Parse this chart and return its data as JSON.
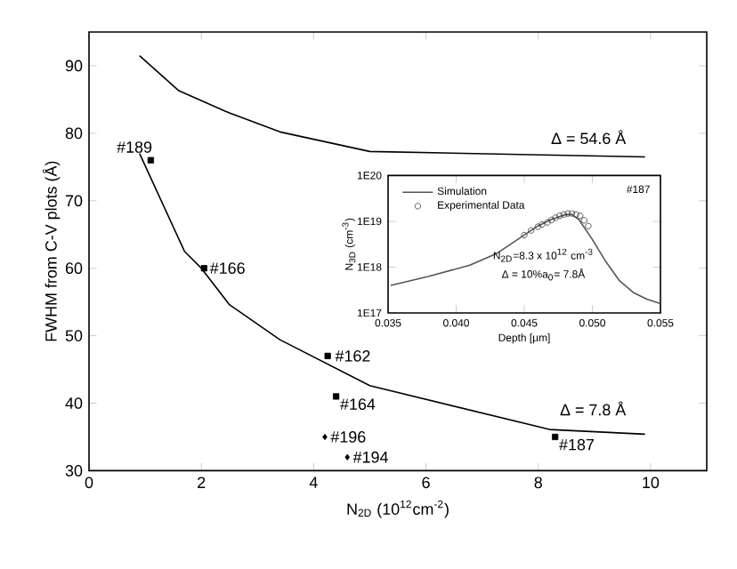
{
  "chart_data": [
    {
      "type": "scatter",
      "xlabel": "N$_{2D}$ (10$^{12}$cm$^{-2}$)",
      "ylabel": "FWHM from C-V plots (Å)",
      "xlim": [
        0,
        11
      ],
      "ylim": [
        30,
        95
      ],
      "xticks": [
        0,
        2,
        4,
        6,
        8,
        10
      ],
      "yticks": [
        30,
        40,
        50,
        60,
        70,
        80,
        90
      ],
      "grid": false,
      "legend": false,
      "series": [
        {
          "type": "line",
          "color": "#000000",
          "marker": "none",
          "x": [
            0.9,
            1.6,
            2.5,
            3.4,
            5.0,
            9.9
          ],
          "values": [
            91.5,
            86.3,
            83,
            80.2,
            77.3,
            76.5
          ]
        },
        {
          "type": "line",
          "color": "#000000",
          "marker": "none",
          "x": [
            0.9,
            1.7,
            2.0,
            2.5,
            3.4,
            5.0,
            8.2,
            9.9
          ],
          "values": [
            77,
            62.5,
            60,
            54.6,
            49.4,
            42.6,
            36.1,
            35.4
          ]
        },
        {
          "color": "#000000",
          "marker": "square",
          "x": [
            1.1,
            2.05,
            4.25,
            4.4,
            8.3
          ],
          "values": [
            76,
            60,
            47,
            41,
            35
          ]
        },
        {
          "color": "#000000",
          "marker": "diamond",
          "x": [
            4.2,
            4.6
          ],
          "values": [
            35,
            32
          ]
        }
      ],
      "annotations": [
        {
          "text": "#189",
          "x": 1.1,
          "y": 76
        },
        {
          "text": "#166",
          "x": 2.05,
          "y": 60
        },
        {
          "text": "#162",
          "x": 4.25,
          "y": 47
        },
        {
          "text": "#164",
          "x": 4.4,
          "y": 41
        },
        {
          "text": "#196",
          "x": 4.2,
          "y": 35
        },
        {
          "text": "#194",
          "x": 4.6,
          "y": 32
        },
        {
          "text": "#187",
          "x": 8.3,
          "y": 35
        },
        {
          "text": "Δ = 54.6 Å",
          "x": 9.6,
          "y": 76.5
        },
        {
          "text": "Δ = 7.8 Å",
          "x": 9.6,
          "y": 35.5
        }
      ]
    },
    {
      "type": "line",
      "xlabel": "Depth [µm]",
      "ylabel": "N$_{3D}$ (cm$^{-3}$)",
      "log": "y",
      "xlim": [
        0.035,
        0.055
      ],
      "ylim": [
        1e+17,
        1e+20
      ],
      "xticks": [
        {
          "value": 0.035,
          "label": "0.035"
        },
        {
          "value": 0.04,
          "label": "0.040"
        },
        {
          "value": 0.045,
          "label": "0.045"
        },
        {
          "value": 0.05,
          "label": "0.050"
        },
        {
          "value": 0.055,
          "label": "0.055"
        }
      ],
      "yticks": [
        {
          "value": 1e+17,
          "label": "1E17"
        },
        {
          "value": 1e+18,
          "label": "1E18"
        },
        {
          "value": 1e+19,
          "label": "1E19"
        },
        {
          "value": 1e+20,
          "label": "1E20"
        }
      ],
      "grid": false,
      "legend": "top left",
      "series": [
        {
          "name": "Simulation",
          "color": "#555555",
          "marker": "none",
          "x": [
            0.0352,
            0.038,
            0.041,
            0.043,
            0.045,
            0.046,
            0.047,
            0.048,
            0.0485,
            0.049,
            0.05,
            0.051,
            0.052,
            0.053,
            0.054,
            0.055
          ],
          "values": [
            4e+17,
            6.3e+17,
            1.1e+18,
            2e+18,
            5e+18,
            7.9e+18,
            1.1e+19,
            1.4e+19,
            1.4e+19,
            1.1e+19,
            4e+18,
            1.3e+18,
            5e+17,
            2.8e+17,
            2e+17,
            1.6e+17
          ]
        },
        {
          "name": "Experimental Data",
          "type": "scatter",
          "color": "#333333",
          "marker": "circle",
          "x": [
            0.045,
            0.0455,
            0.046,
            0.0463,
            0.0467,
            0.047,
            0.0473,
            0.0476,
            0.0479,
            0.0482,
            0.0485,
            0.0488,
            0.0491,
            0.0494,
            0.0497
          ],
          "values": [
            5e+18,
            6.3e+18,
            7.6e+18,
            8.5e+18,
            9.5e+18,
            1.07e+19,
            1.2e+19,
            1.32e+19,
            1.41e+19,
            1.48e+19,
            1.48e+19,
            1.41e+19,
            1.32e+19,
            1.05e+19,
            7.9e+18
          ]
        }
      ],
      "annotations": [
        "#187",
        "N$_{2D}$=8.3 x 10$^{12}$ cm$^{-3}$",
        "Δ = 10%a$_{0}$= 7.8Å"
      ]
    }
  ]
}
